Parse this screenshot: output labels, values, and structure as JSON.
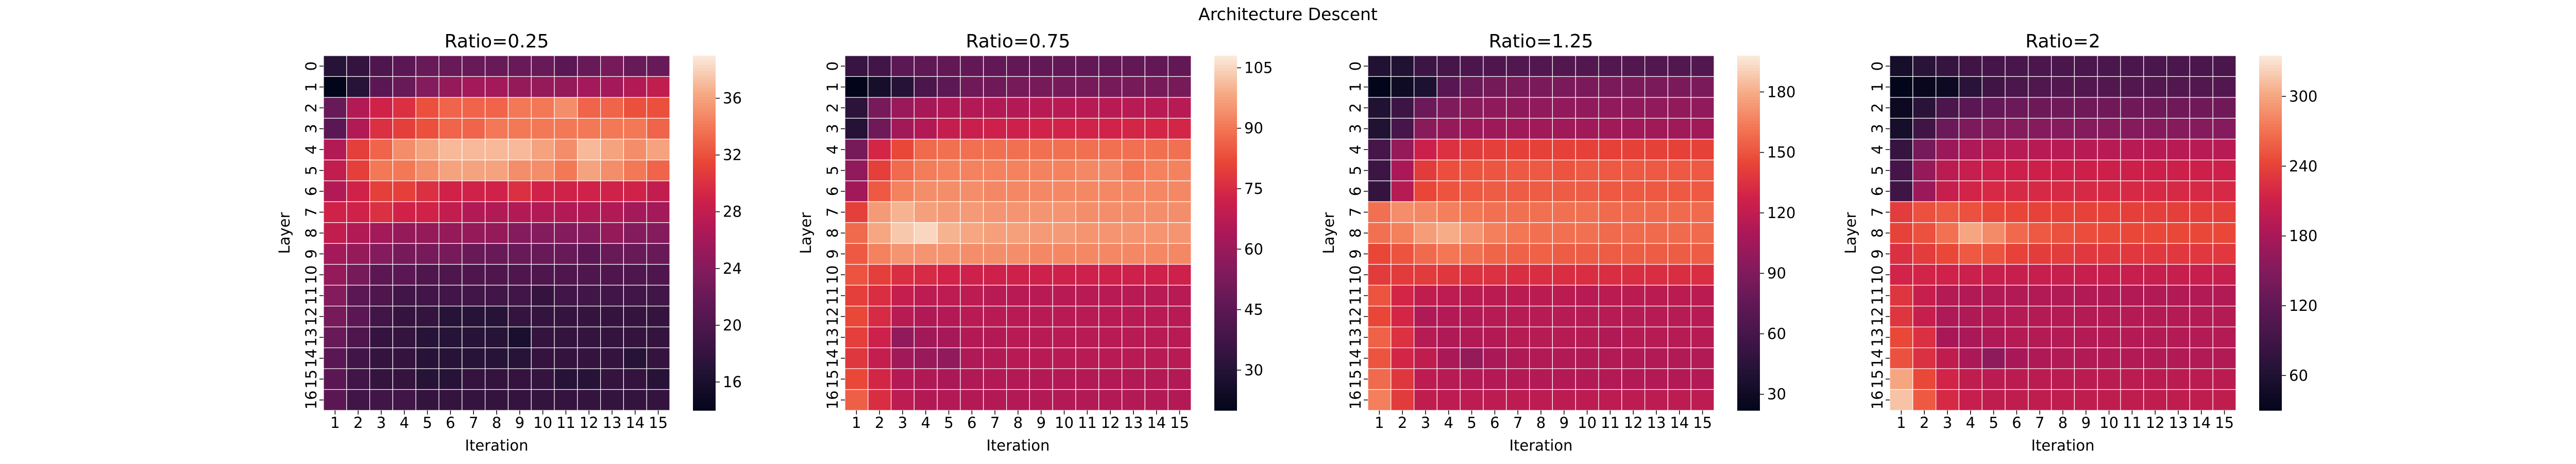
{
  "figure": {
    "title": "Architecture Descent"
  },
  "chart_data": [
    {
      "type": "heatmap",
      "title": "Ratio=0.25",
      "xlabel": "Iteration",
      "ylabel": "Layer",
      "x": [
        "1",
        "2",
        "3",
        "4",
        "5",
        "6",
        "7",
        "8",
        "9",
        "10",
        "11",
        "12",
        "13",
        "14",
        "15"
      ],
      "y": [
        "0",
        "1",
        "2",
        "3",
        "4",
        "5",
        "6",
        "7",
        "8",
        "9",
        "10",
        "11",
        "12",
        "13",
        "14",
        "15",
        "16"
      ],
      "colorbar": {
        "min": 14,
        "max": 39,
        "ticks": [
          16,
          20,
          24,
          28,
          32,
          36
        ]
      },
      "values": [
        [
          17,
          18,
          20,
          21,
          22,
          22,
          22,
          22,
          22,
          22,
          21,
          22,
          23,
          22,
          22
        ],
        [
          14,
          17,
          21,
          22,
          24,
          25,
          26,
          26,
          25,
          25,
          25,
          26,
          26,
          27,
          28
        ],
        [
          22,
          27,
          29,
          30,
          32,
          33,
          33,
          33,
          34,
          34,
          35,
          33,
          33,
          32,
          32
        ],
        [
          21,
          27,
          30,
          31,
          32,
          33,
          33,
          34,
          34,
          34,
          34,
          34,
          34,
          34,
          33
        ],
        [
          27,
          31,
          33,
          35,
          36,
          37,
          37,
          37,
          37,
          36,
          35,
          37,
          36,
          35,
          36
        ],
        [
          28,
          31,
          34,
          34,
          35,
          36,
          36,
          36,
          35,
          35,
          34,
          36,
          35,
          34,
          33
        ],
        [
          27,
          29,
          31,
          31,
          30,
          29,
          29,
          29,
          30,
          29,
          29,
          29,
          29,
          29,
          28
        ],
        [
          29,
          29,
          30,
          29,
          29,
          28,
          27,
          27,
          27,
          27,
          27,
          27,
          27,
          26,
          26
        ],
        [
          28,
          27,
          26,
          25,
          25,
          25,
          25,
          25,
          24,
          24,
          24,
          24,
          25,
          24,
          24
        ],
        [
          26,
          25,
          24,
          23,
          23,
          23,
          22,
          22,
          22,
          22,
          22,
          21,
          22,
          22,
          22
        ],
        [
          25,
          23,
          21,
          21,
          20,
          20,
          20,
          20,
          20,
          20,
          20,
          20,
          20,
          20,
          20
        ],
        [
          24,
          21,
          20,
          19,
          19,
          19,
          19,
          19,
          19,
          18,
          19,
          19,
          19,
          19,
          19
        ],
        [
          23,
          21,
          19,
          18,
          18,
          17,
          17,
          17,
          18,
          18,
          18,
          18,
          18,
          18,
          18
        ],
        [
          22,
          20,
          18,
          18,
          17,
          17,
          17,
          17,
          16,
          18,
          18,
          18,
          18,
          18,
          18
        ],
        [
          21,
          19,
          18,
          18,
          17,
          17,
          17,
          17,
          17,
          18,
          18,
          18,
          18,
          17,
          18
        ],
        [
          21,
          19,
          18,
          18,
          17,
          17,
          18,
          18,
          18,
          18,
          17,
          17,
          18,
          18,
          17
        ],
        [
          21,
          19,
          19,
          19,
          18,
          18,
          18,
          18,
          18,
          18,
          18,
          18,
          18,
          18,
          18
        ]
      ]
    },
    {
      "type": "heatmap",
      "title": "Ratio=0.75",
      "xlabel": "Iteration",
      "ylabel": "Layer",
      "x": [
        "1",
        "2",
        "3",
        "4",
        "5",
        "6",
        "7",
        "8",
        "9",
        "10",
        "11",
        "12",
        "13",
        "14",
        "15"
      ],
      "y": [
        "0",
        "1",
        "2",
        "3",
        "4",
        "5",
        "6",
        "7",
        "8",
        "9",
        "10",
        "11",
        "12",
        "13",
        "14",
        "15",
        "16"
      ],
      "colorbar": {
        "min": 20,
        "max": 108,
        "ticks": [
          30,
          45,
          60,
          75,
          90,
          105
        ]
      },
      "values": [
        [
          35,
          38,
          45,
          46,
          47,
          47,
          47,
          47,
          47,
          47,
          47,
          47,
          47,
          47,
          47
        ],
        [
          20,
          26,
          30,
          40,
          45,
          50,
          50,
          52,
          52,
          52,
          52,
          52,
          52,
          52,
          52
        ],
        [
          32,
          52,
          60,
          63,
          65,
          66,
          66,
          66,
          67,
          67,
          67,
          67,
          67,
          67,
          67
        ],
        [
          30,
          50,
          62,
          66,
          70,
          71,
          72,
          72,
          73,
          73,
          73,
          73,
          74,
          74,
          74
        ],
        [
          52,
          74,
          82,
          88,
          89,
          89,
          89,
          89,
          89,
          89,
          89,
          89,
          89,
          89,
          89
        ],
        [
          58,
          80,
          88,
          91,
          92,
          92,
          92,
          92,
          92,
          92,
          93,
          93,
          90,
          92,
          92
        ],
        [
          62,
          85,
          92,
          94,
          94,
          94,
          93,
          93,
          93,
          93,
          93,
          93,
          93,
          93,
          93
        ],
        [
          80,
          96,
          100,
          97,
          96,
          96,
          95,
          95,
          95,
          95,
          94,
          94,
          94,
          94,
          94
        ],
        [
          88,
          98,
          103,
          105,
          100,
          98,
          97,
          97,
          96,
          96,
          95,
          95,
          95,
          95,
          95
        ],
        [
          85,
          92,
          95,
          95,
          95,
          94,
          94,
          94,
          93,
          93,
          93,
          93,
          93,
          93,
          93
        ],
        [
          84,
          80,
          76,
          75,
          73,
          72,
          72,
          72,
          72,
          72,
          72,
          72,
          72,
          72,
          72
        ],
        [
          80,
          76,
          70,
          68,
          68,
          68,
          67,
          67,
          67,
          67,
          67,
          67,
          67,
          67,
          67
        ],
        [
          82,
          75,
          67,
          65,
          66,
          67,
          67,
          67,
          67,
          67,
          67,
          67,
          67,
          67,
          67
        ],
        [
          80,
          72,
          58,
          62,
          63,
          66,
          66,
          67,
          67,
          67,
          67,
          67,
          67,
          67,
          67
        ],
        [
          78,
          70,
          62,
          60,
          58,
          65,
          66,
          67,
          67,
          67,
          67,
          67,
          67,
          67,
          67
        ],
        [
          82,
          74,
          66,
          65,
          64,
          65,
          66,
          66,
          66,
          66,
          66,
          66,
          66,
          66,
          66
        ],
        [
          86,
          76,
          68,
          66,
          66,
          66,
          66,
          66,
          66,
          66,
          66,
          66,
          66,
          66,
          66
        ]
      ]
    },
    {
      "type": "heatmap",
      "title": "Ratio=1.25",
      "xlabel": "Iteration",
      "ylabel": "Layer",
      "x": [
        "1",
        "2",
        "3",
        "4",
        "5",
        "6",
        "7",
        "8",
        "9",
        "10",
        "11",
        "12",
        "13",
        "14",
        "15"
      ],
      "y": [
        "0",
        "1",
        "2",
        "3",
        "4",
        "5",
        "6",
        "7",
        "8",
        "9",
        "10",
        "11",
        "12",
        "13",
        "14",
        "15",
        "16"
      ],
      "colorbar": {
        "min": 22,
        "max": 198,
        "ticks": [
          30,
          60,
          90,
          120,
          150,
          180
        ]
      },
      "values": [
        [
          40,
          40,
          55,
          60,
          63,
          65,
          66,
          67,
          67,
          67,
          67,
          67,
          67,
          67,
          67
        ],
        [
          22,
          30,
          38,
          70,
          80,
          85,
          87,
          88,
          88,
          88,
          88,
          88,
          88,
          88,
          88
        ],
        [
          40,
          55,
          80,
          90,
          95,
          97,
          97,
          98,
          98,
          98,
          98,
          98,
          98,
          98,
          98
        ],
        [
          40,
          60,
          95,
          100,
          103,
          104,
          105,
          105,
          105,
          105,
          105,
          105,
          105,
          105,
          105
        ],
        [
          60,
          100,
          125,
          135,
          140,
          142,
          143,
          143,
          143,
          143,
          143,
          143,
          143,
          143,
          143
        ],
        [
          55,
          110,
          140,
          148,
          150,
          151,
          152,
          152,
          150,
          152,
          152,
          152,
          152,
          152,
          152
        ],
        [
          50,
          115,
          145,
          150,
          152,
          153,
          153,
          153,
          153,
          153,
          152,
          152,
          152,
          152,
          152
        ],
        [
          160,
          170,
          168,
          165,
          162,
          160,
          160,
          160,
          160,
          160,
          158,
          158,
          158,
          158,
          158
        ],
        [
          160,
          165,
          175,
          180,
          172,
          165,
          162,
          160,
          160,
          160,
          158,
          158,
          158,
          158,
          158
        ],
        [
          145,
          150,
          158,
          162,
          160,
          156,
          155,
          155,
          153,
          153,
          153,
          153,
          153,
          153,
          153
        ],
        [
          140,
          140,
          140,
          138,
          135,
          135,
          134,
          134,
          134,
          134,
          134,
          134,
          134,
          134,
          134
        ],
        [
          150,
          130,
          120,
          118,
          117,
          117,
          117,
          117,
          117,
          116,
          117,
          117,
          117,
          117,
          117
        ],
        [
          145,
          130,
          112,
          114,
          114,
          115,
          115,
          115,
          115,
          115,
          115,
          115,
          115,
          115,
          115
        ],
        [
          155,
          135,
          115,
          112,
          113,
          114,
          115,
          115,
          115,
          115,
          112,
          115,
          115,
          115,
          115
        ],
        [
          150,
          130,
          120,
          110,
          100,
          110,
          112,
          113,
          113,
          113,
          113,
          113,
          113,
          113,
          113
        ],
        [
          158,
          138,
          118,
          115,
          114,
          114,
          114,
          114,
          114,
          114,
          114,
          114,
          114,
          114,
          114
        ],
        [
          165,
          140,
          120,
          118,
          118,
          118,
          118,
          118,
          118,
          118,
          118,
          118,
          118,
          118,
          118
        ]
      ]
    },
    {
      "type": "heatmap",
      "title": "Ratio=2",
      "xlabel": "Iteration",
      "ylabel": "Layer",
      "x": [
        "1",
        "2",
        "3",
        "4",
        "5",
        "6",
        "7",
        "8",
        "9",
        "10",
        "11",
        "12",
        "13",
        "14",
        "15"
      ],
      "y": [
        "0",
        "1",
        "2",
        "3",
        "4",
        "5",
        "6",
        "7",
        "8",
        "9",
        "10",
        "11",
        "12",
        "13",
        "14",
        "15",
        "16"
      ],
      "colorbar": {
        "min": 30,
        "max": 335,
        "ticks": [
          60,
          120,
          180,
          240,
          300
        ]
      },
      "values": [
        [
          50,
          70,
          80,
          90,
          95,
          98,
          100,
          100,
          100,
          100,
          100,
          100,
          100,
          100,
          100
        ],
        [
          30,
          35,
          40,
          70,
          90,
          100,
          105,
          107,
          108,
          108,
          108,
          108,
          108,
          108,
          108
        ],
        [
          40,
          70,
          100,
          115,
          125,
          130,
          132,
          133,
          134,
          134,
          134,
          134,
          134,
          134,
          134
        ],
        [
          50,
          90,
          130,
          145,
          150,
          152,
          153,
          153,
          153,
          153,
          153,
          153,
          153,
          153,
          153
        ],
        [
          80,
          140,
          170,
          185,
          190,
          192,
          193,
          193,
          193,
          193,
          193,
          193,
          193,
          193,
          193
        ],
        [
          95,
          165,
          195,
          205,
          208,
          210,
          210,
          210,
          210,
          210,
          210,
          210,
          210,
          210,
          210
        ],
        [
          90,
          170,
          205,
          215,
          220,
          220,
          220,
          220,
          220,
          220,
          220,
          220,
          220,
          220,
          220
        ],
        [
          235,
          250,
          255,
          250,
          245,
          242,
          240,
          240,
          240,
          240,
          238,
          238,
          238,
          238,
          238
        ],
        [
          240,
          250,
          270,
          300,
          285,
          265,
          255,
          250,
          248,
          246,
          245,
          245,
          245,
          245,
          245
        ],
        [
          225,
          235,
          245,
          255,
          252,
          240,
          236,
          235,
          232,
          232,
          232,
          232,
          232,
          232,
          232
        ],
        [
          215,
          215,
          212,
          208,
          206,
          205,
          205,
          205,
          205,
          205,
          205,
          205,
          205,
          205,
          205
        ],
        [
          230,
          205,
          190,
          188,
          188,
          188,
          188,
          188,
          188,
          188,
          188,
          188,
          188,
          188,
          188
        ],
        [
          230,
          205,
          185,
          186,
          188,
          190,
          190,
          190,
          190,
          190,
          190,
          190,
          190,
          190,
          190
        ],
        [
          245,
          225,
          180,
          182,
          186,
          190,
          190,
          190,
          190,
          190,
          190,
          190,
          190,
          190,
          190
        ],
        [
          250,
          225,
          200,
          182,
          160,
          180,
          186,
          188,
          188,
          188,
          188,
          188,
          188,
          188,
          188
        ],
        [
          300,
          245,
          215,
          200,
          195,
          195,
          195,
          195,
          195,
          195,
          195,
          195,
          195,
          195,
          195
        ],
        [
          315,
          255,
          220,
          205,
          200,
          200,
          200,
          200,
          200,
          200,
          200,
          200,
          200,
          200,
          200
        ]
      ]
    }
  ]
}
